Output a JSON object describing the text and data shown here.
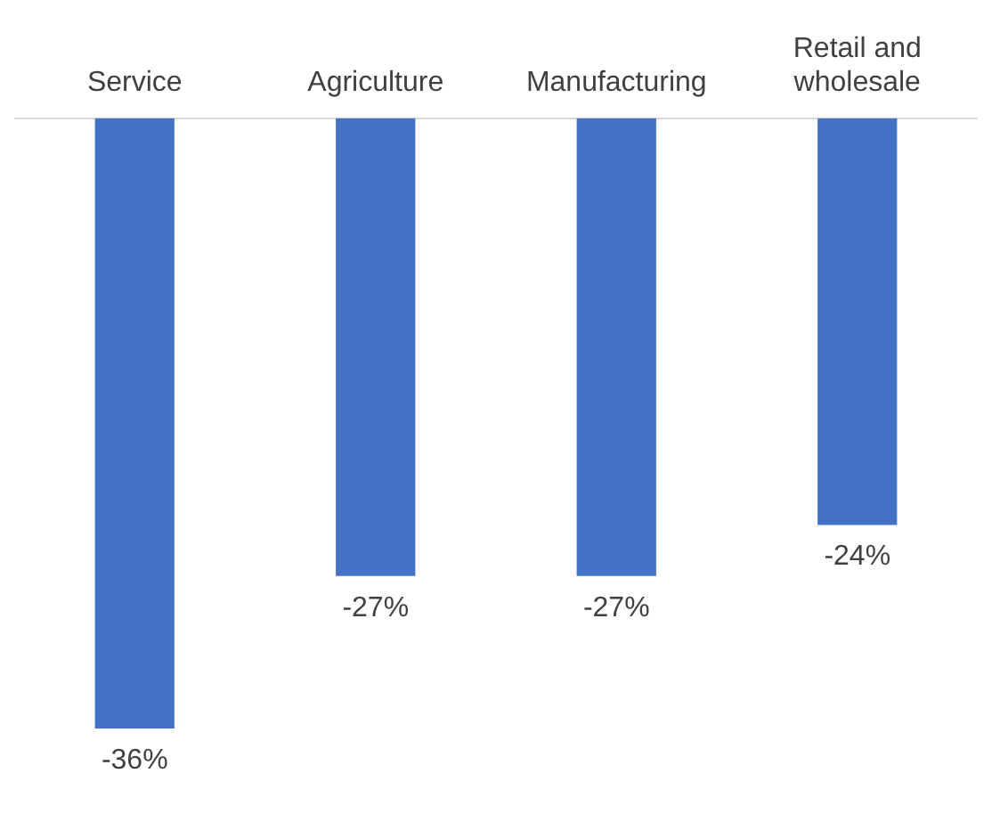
{
  "chart_data": {
    "type": "bar",
    "categories": [
      "Service",
      "Agriculture",
      "Manufacturing",
      "Retail and wholesale"
    ],
    "values": [
      -36,
      -27,
      -27,
      -24
    ],
    "value_labels": [
      "-36%",
      "-27%",
      "-27%",
      "-24%"
    ],
    "color": "#4472c4",
    "grid": false,
    "legend": false
  }
}
